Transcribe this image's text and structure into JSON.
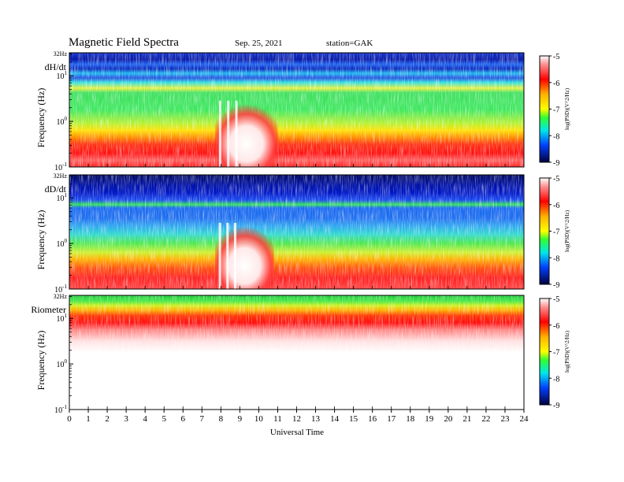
{
  "header": {
    "title": "Magnetic  Field  Spectra",
    "date": "Sep. 25, 2021",
    "station": "station=GAK"
  },
  "chart_data": {
    "type": "heatmap",
    "xlabel": "Universal Time",
    "xlim": [
      0,
      24
    ],
    "xticks": [
      "0",
      "1",
      "2",
      "3",
      "4",
      "5",
      "6",
      "7",
      "8",
      "9",
      "10",
      "11",
      "12",
      "13",
      "14",
      "15",
      "16",
      "17",
      "18",
      "19",
      "20",
      "21",
      "22",
      "23",
      "24"
    ],
    "panels": [
      {
        "label": "dH/dt",
        "ylabel": "Frequency  (Hz)",
        "y_scale": "log",
        "ylim": [
          0.1,
          32
        ],
        "ytop_label": "32Hz",
        "colorbar": {
          "label": "log(PSD)(V^2/Hz)",
          "range": [
            -9,
            -5
          ],
          "ticks": [
            "-5",
            "-6",
            "-7",
            "-8",
            "-9"
          ]
        },
        "features": [
          {
            "desc": "broadband power enhancement",
            "t_start": 7.7,
            "t_end": 11.0
          }
        ]
      },
      {
        "label": "dD/dt",
        "ylabel": "Frequency  (Hz)",
        "y_scale": "log",
        "ylim": [
          0.1,
          32
        ],
        "ytop_label": "32Hz",
        "colorbar": {
          "label": "log(PSD)(V^2/Hz)",
          "range": [
            -9,
            -5
          ],
          "ticks": [
            "-5",
            "-6",
            "-7",
            "-8",
            "-9"
          ]
        },
        "features": [
          {
            "desc": "broadband power enhancement",
            "t_start": 7.7,
            "t_end": 10.8
          }
        ]
      },
      {
        "label": "Riometer",
        "ylabel": "Frequency  (Hz)",
        "y_scale": "log",
        "ylim": [
          0.1,
          32
        ],
        "ytop_label": "32Hz",
        "colorbar": {
          "label": "log(PSD)(V^2/Hz)",
          "range": [
            -9,
            -5
          ],
          "ticks": [
            "-5",
            "-6",
            "-7",
            "-8",
            "-9"
          ]
        },
        "features": []
      }
    ]
  }
}
